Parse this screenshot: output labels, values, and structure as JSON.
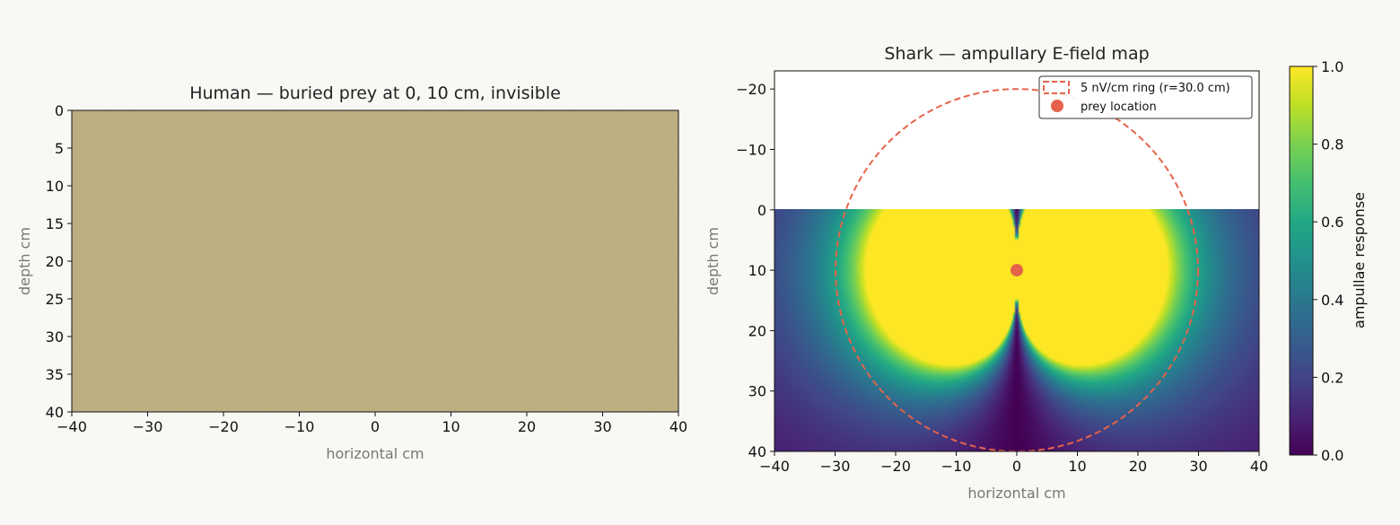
{
  "chart_data": [
    {
      "type": "heatmap",
      "title": "Human — buried prey at 0, 10 cm, invisible",
      "xlabel": "horizontal cm",
      "ylabel": "depth cm",
      "xlim": [
        -40,
        40
      ],
      "ylim": [
        40,
        0
      ],
      "xticks": [
        -40,
        -30,
        -20,
        -10,
        0,
        10,
        20,
        30,
        40
      ],
      "xtick_labels": [
        "−40",
        "−30",
        "−20",
        "−10",
        "0",
        "10",
        "20",
        "30",
        "40"
      ],
      "yticks": [
        0,
        5,
        10,
        15,
        20,
        25,
        30,
        35,
        40
      ],
      "ytick_labels": [
        "0",
        "5",
        "10",
        "15",
        "20",
        "25",
        "30",
        "35",
        "40"
      ],
      "fill_color": "#bcad7a",
      "texture": "uniform noise"
    },
    {
      "type": "heatmap",
      "title": "Shark — ampullary E-field map",
      "xlabel": "horizontal cm",
      "ylabel": "depth cm",
      "xlim": [
        -40,
        40
      ],
      "ylim": [
        40,
        -23
      ],
      "xticks": [
        -40,
        -30,
        -20,
        -10,
        0,
        10,
        20,
        30,
        40
      ],
      "xtick_labels": [
        "−40",
        "−30",
        "−20",
        "−10",
        "0",
        "10",
        "20",
        "30",
        "40"
      ],
      "yticks": [
        -20,
        -10,
        0,
        10,
        20,
        30,
        40
      ],
      "ytick_labels": [
        "−20",
        "−10",
        "0",
        "10",
        "20",
        "30",
        "40"
      ],
      "data_ylim": [
        0,
        40
      ],
      "colormap": "viridis",
      "colorbar": {
        "label": "ampullae response",
        "range": [
          0,
          1
        ],
        "ticks": [
          0.0,
          0.2,
          0.4,
          0.6,
          0.8,
          1.0
        ],
        "tick_labels": [
          "0.0",
          "0.2",
          "0.4",
          "0.6",
          "0.8",
          "1.0"
        ]
      },
      "ring": {
        "center": [
          0,
          10
        ],
        "radius": 30.0,
        "color": "#e5634a",
        "style": "dashed"
      },
      "prey": {
        "x": 0,
        "y": 10,
        "color": "#e5634a"
      },
      "legend": {
        "placement": "top-right",
        "entries": [
          "5 nV/cm ring (r=30.0 cm)",
          "prey location"
        ]
      }
    }
  ]
}
